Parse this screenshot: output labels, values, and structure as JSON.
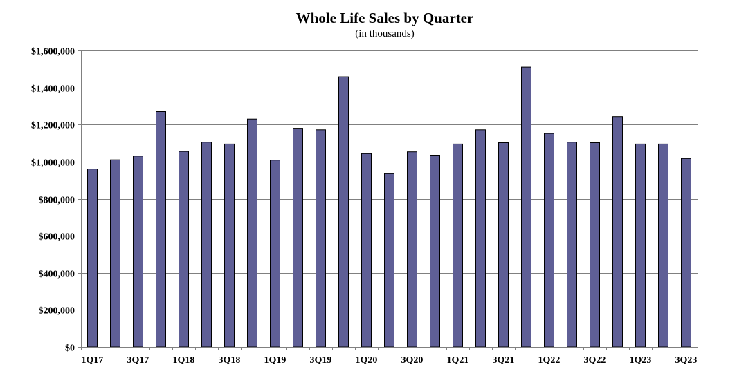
{
  "chart_data": {
    "type": "bar",
    "title": "Whole Life Sales by Quarter",
    "subtitle": "(in thousands)",
    "xlabel": "",
    "ylabel": "",
    "categories": [
      "1Q17",
      "2Q17",
      "3Q17",
      "4Q17",
      "1Q18",
      "2Q18",
      "3Q18",
      "4Q18",
      "1Q19",
      "2Q19",
      "3Q19",
      "4Q19",
      "1Q20",
      "2Q20",
      "3Q20",
      "4Q20",
      "1Q21",
      "2Q21",
      "3Q21",
      "4Q21",
      "1Q22",
      "2Q22",
      "3Q22",
      "4Q22",
      "1Q23",
      "2Q23",
      "3Q23"
    ],
    "x_tick_labels": [
      "1Q17",
      "",
      "3Q17",
      "",
      "1Q18",
      "",
      "3Q18",
      "",
      "1Q19",
      "",
      "3Q19",
      "",
      "1Q20",
      "",
      "3Q20",
      "",
      "1Q21",
      "",
      "3Q21",
      "",
      "1Q22",
      "",
      "3Q22",
      "",
      "1Q23",
      "",
      "3Q23"
    ],
    "values": [
      960000,
      1010000,
      1030000,
      1270000,
      1055000,
      1105000,
      1095000,
      1230000,
      1008000,
      1180000,
      1172000,
      1458000,
      1043000,
      935000,
      1053000,
      1035000,
      1095000,
      1172000,
      1102000,
      1510000,
      1152000,
      1105000,
      1102000,
      1243000,
      1095000,
      1095000,
      1017000
    ],
    "ylim": [
      0,
      1600000
    ],
    "y_ticks": [
      0,
      200000,
      400000,
      600000,
      800000,
      1000000,
      1200000,
      1400000,
      1600000
    ],
    "y_tick_labels": [
      "$0",
      "$200,000",
      "$400,000",
      "$600,000",
      "$800,000",
      "$1,000,000",
      "$1,200,000",
      "$1,400,000",
      "$1,600,000"
    ],
    "grid": true,
    "legend": "none",
    "colors": {
      "bar_fill": "#5f5f96",
      "bar_stroke": "#000000",
      "grid": "#808080",
      "axis": "#808080"
    }
  }
}
